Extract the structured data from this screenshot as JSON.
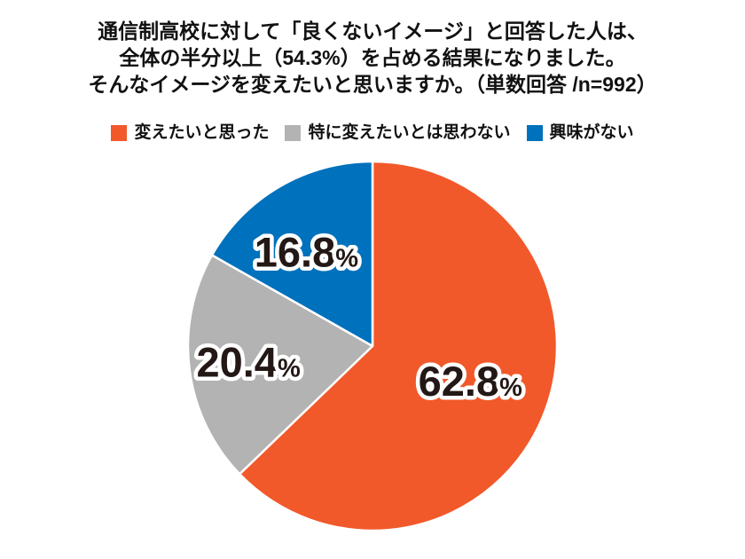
{
  "title": {
    "lines": [
      "通信制高校に対して「良くないイメージ」と回答した人は、",
      "全体の半分以上（54.3%）を占める結果になりました。",
      "そんなイメージを変えたいと思いますか。（単数回答 /n=992）"
    ]
  },
  "legend": {
    "items": [
      {
        "label": "変えたいと思った",
        "color": "#F1592A"
      },
      {
        "label": "特に変えたいとは思わない",
        "color": "#B3B3B3"
      },
      {
        "label": "興味がない",
        "color": "#0071BC"
      }
    ]
  },
  "chart_data": {
    "type": "pie",
    "title": "通信制高校に対して「良くないイメージ」と回答した人は、全体の半分以上（54.3%）を占める結果になりました。そんなイメージを変えたいと思いますか。（単数回答 /n=992）",
    "n": 992,
    "start_angle_deg": 0,
    "direction": "clockwise",
    "value_suffix": "%",
    "slice_border_color": "#ffffff",
    "label_color": "#231815",
    "label_outline_color": "#ffffff",
    "legend_position": "top",
    "slices": [
      {
        "label": "変えたいと思った",
        "value": 62.8,
        "display": "62.8",
        "color": "#F1592A",
        "label_angle_deg": 109.5,
        "label_radius_fraction": 0.5625
      },
      {
        "label": "特に変えたいとは思わない",
        "value": 20.4,
        "display": "20.4",
        "color": "#B3B3B3",
        "label_angle_deg": 262.8,
        "label_radius_fraction": 0.678
      },
      {
        "label": "興味がない",
        "value": 16.8,
        "display": "16.8",
        "color": "#0071BC",
        "label_angle_deg": 325.0,
        "label_radius_fraction": 0.625
      }
    ]
  }
}
